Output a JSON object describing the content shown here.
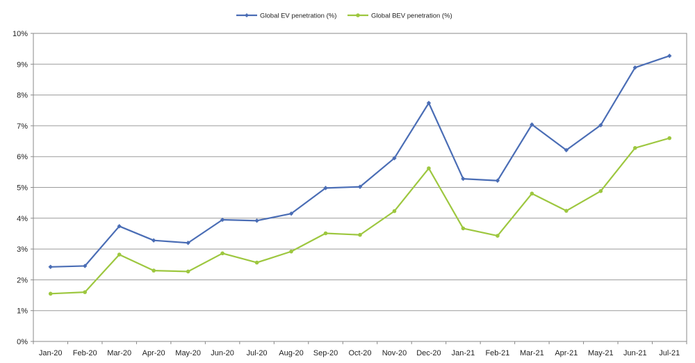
{
  "chart_data": {
    "type": "line",
    "title": "",
    "xlabel": "",
    "ylabel": "",
    "categories": [
      "Jan-20",
      "Feb-20",
      "Mar-20",
      "Apr-20",
      "May-20",
      "Jun-20",
      "Jul-20",
      "Aug-20",
      "Sep-20",
      "Oct-20",
      "Nov-20",
      "Dec-20",
      "Jan-21",
      "Feb-21",
      "Mar-21",
      "Apr-21",
      "May-21",
      "Jun-21",
      "Jul-21"
    ],
    "ylim": [
      0,
      10
    ],
    "y_ticks": [
      0,
      1,
      2,
      3,
      4,
      5,
      6,
      7,
      8,
      9,
      10
    ],
    "y_tick_labels": [
      "0%",
      "1%",
      "2%",
      "3%",
      "4%",
      "5%",
      "6%",
      "7%",
      "8%",
      "9%",
      "10%"
    ],
    "grid": true,
    "legend_position": "top-center",
    "series": [
      {
        "name": "Global EV penetration (%)",
        "color": "#4a6db5",
        "values": [
          2.42,
          2.45,
          3.74,
          3.28,
          3.2,
          3.95,
          3.92,
          4.15,
          4.98,
          5.02,
          5.95,
          7.74,
          5.28,
          5.22,
          7.04,
          6.21,
          7.02,
          8.89,
          9.27
        ]
      },
      {
        "name": "Global BEV penetration (%)",
        "color": "#9dc73f",
        "values": [
          1.55,
          1.6,
          2.82,
          2.3,
          2.27,
          2.86,
          2.56,
          2.92,
          3.51,
          3.46,
          4.23,
          5.62,
          3.67,
          3.43,
          4.8,
          4.24,
          4.88,
          6.28,
          6.6
        ]
      }
    ]
  }
}
